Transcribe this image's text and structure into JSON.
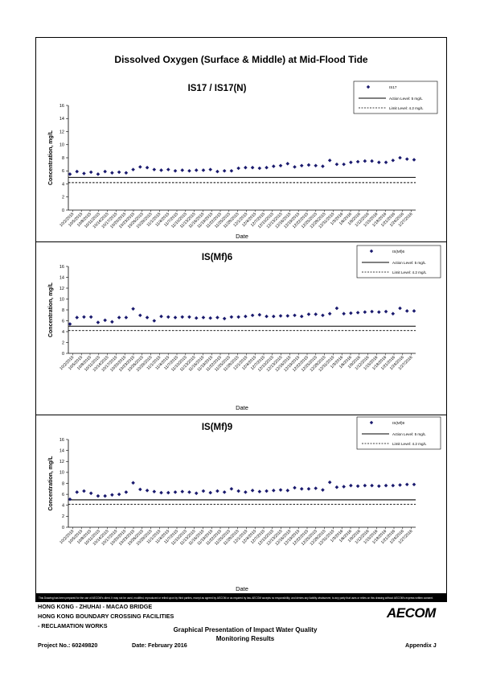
{
  "main_title": "Dissolved Oxygen (Surface & Middle) at Mid-Flood Tide",
  "disclaimer": "This Drawing has been prepared for the use of AECOM's client. It may not be used, modified, reproduced or relied upon by third parties, except as agreed by AECOM or as required by law. AECOM accepts no responsibility, and denies any liability whatsoever, to any party that uses or relies on this drawing without AECOM's express written consent.",
  "footer": {
    "line1": "HONG KONG - ZHUHAI - MACAO BRIDGE",
    "line2": "HONG KONG BOUNDARY CROSSING FACILITIES",
    "line3": "- RECLAMATION WORKS",
    "title_line1": "Graphical Presentation of Impact Water Quality",
    "title_line2": "Monitoring Results",
    "project": "Project No.: 60249820",
    "date": "Date: February 2016",
    "appendix": "Appendix J",
    "logo": "AECOM"
  },
  "colors": {
    "series": "#1a1a6e",
    "action": "#000000",
    "limit": "#000000"
  },
  "chart_data": [
    {
      "type": "scatter",
      "title": "IS17 / IS17(N)",
      "xlabel": "Date",
      "ylabel": "Concentration, mg/L",
      "ylim": [
        0,
        16
      ],
      "yticks": [
        0,
        2,
        4,
        6,
        8,
        10,
        12,
        14,
        16
      ],
      "x_tick_labels": [
        "10/2/2015",
        "10/5/2015",
        "10/8/2015",
        "10/11/2015",
        "10/14/2015",
        "10/17/2015",
        "10/20/2015",
        "10/23/2015",
        "10/26/2015",
        "10/29/2015",
        "11/1/2015",
        "11/4/2015",
        "11/7/2015",
        "11/10/2015",
        "11/13/2015",
        "11/16/2015",
        "11/19/2015",
        "11/22/2015",
        "11/25/2015",
        "11/28/2015",
        "12/1/2015",
        "12/4/2015",
        "12/7/2015",
        "12/10/2015",
        "12/13/2015",
        "12/16/2015",
        "12/19/2015",
        "12/22/2015",
        "12/25/2015",
        "12/28/2015",
        "12/31/2015",
        "1/3/2016",
        "1/6/2016",
        "1/9/2016",
        "1/12/2016",
        "1/15/2016",
        "1/18/2016",
        "1/21/2016",
        "1/24/2016",
        "1/27/2016"
      ],
      "legend": {
        "series": "IS17",
        "action": "Action Level: 5 mg/L",
        "limit": "Limit Level: 4.2 mg/L",
        "position": "top-right"
      },
      "action_level": 5,
      "limit_level": 4.2,
      "series": [
        {
          "name": "IS17",
          "values": [
            5.5,
            5.9,
            5.6,
            5.8,
            5.5,
            5.9,
            5.7,
            5.8,
            5.7,
            6.2,
            6.6,
            6.5,
            6.2,
            6.1,
            6.2,
            6.0,
            6.1,
            6.0,
            6.1,
            6.1,
            6.2,
            5.9,
            6.0,
            6.0,
            6.4,
            6.5,
            6.5,
            6.4,
            6.5,
            6.7,
            6.8,
            7.1,
            6.6,
            6.8,
            6.9,
            6.8,
            6.7,
            7.6,
            7.0,
            7.0,
            7.3,
            7.4,
            7.5,
            7.5,
            7.3,
            7.3,
            7.6,
            8.0,
            7.8,
            7.7
          ]
        }
      ]
    },
    {
      "type": "scatter",
      "title": "IS(Mf)6",
      "xlabel": "Date",
      "ylabel": "Concentration, mg/L",
      "ylim": [
        0,
        16
      ],
      "yticks": [
        0,
        2,
        4,
        6,
        8,
        10,
        12,
        14,
        16
      ],
      "x_tick_labels": [
        "10/2/2015",
        "10/5/2015",
        "10/8/2015",
        "10/11/2015",
        "10/14/2015",
        "10/17/2015",
        "10/20/2015",
        "10/23/2015",
        "10/26/2015",
        "10/29/2015",
        "11/1/2015",
        "11/4/2015",
        "11/7/2015",
        "11/10/2015",
        "11/13/2015",
        "11/16/2015",
        "11/19/2015",
        "11/22/2015",
        "11/25/2015",
        "11/28/2015",
        "12/1/2015",
        "12/4/2015",
        "12/7/2015",
        "12/10/2015",
        "12/13/2015",
        "12/16/2015",
        "12/19/2015",
        "12/22/2015",
        "12/25/2015",
        "12/28/2015",
        "12/31/2015",
        "1/3/2016",
        "1/6/2016",
        "1/9/2016",
        "1/12/2016",
        "1/15/2016",
        "1/18/2016",
        "1/21/2016",
        "1/24/2016",
        "1/27/2016"
      ],
      "legend": {
        "series": "IS(Mf)6",
        "action": "Action Level: 5 mg/L",
        "limit": "Limit Level: 4.2 mg/L",
        "position": "top-right"
      },
      "action_level": 5,
      "limit_level": 4.2,
      "series": [
        {
          "name": "IS(Mf)6",
          "values": [
            5.4,
            6.6,
            6.7,
            6.7,
            5.7,
            6.1,
            5.8,
            6.6,
            6.6,
            8.2,
            7.0,
            6.6,
            6.0,
            6.8,
            6.7,
            6.6,
            6.7,
            6.7,
            6.5,
            6.6,
            6.5,
            6.6,
            6.4,
            6.7,
            6.7,
            6.8,
            7.0,
            7.1,
            6.8,
            6.8,
            6.9,
            6.9,
            7.0,
            6.8,
            7.2,
            7.2,
            7.0,
            7.3,
            8.3,
            7.3,
            7.4,
            7.5,
            7.6,
            7.7,
            7.6,
            7.7,
            7.3,
            8.3,
            7.8,
            7.8
          ]
        }
      ]
    },
    {
      "type": "scatter",
      "title": "IS(Mf)9",
      "xlabel": "Date",
      "ylabel": "Concentration, mg/L",
      "ylim": [
        0,
        16
      ],
      "yticks": [
        0,
        2,
        4,
        6,
        8,
        10,
        12,
        14,
        16
      ],
      "x_tick_labels": [
        "10/2/2015",
        "10/5/2015",
        "10/8/2015",
        "10/11/2015",
        "10/14/2015",
        "10/17/2015",
        "10/20/2015",
        "10/23/2015",
        "10/26/2015",
        "10/29/2015",
        "11/1/2015",
        "11/4/2015",
        "11/7/2015",
        "11/10/2015",
        "11/13/2015",
        "11/16/2015",
        "11/19/2015",
        "11/22/2015",
        "11/25/2015",
        "11/28/2015",
        "12/1/2015",
        "12/4/2015",
        "12/7/2015",
        "12/10/2015",
        "12/13/2015",
        "12/16/2015",
        "12/19/2015",
        "12/22/2015",
        "12/25/2015",
        "12/28/2015",
        "12/31/2015",
        "1/3/2016",
        "1/6/2016",
        "1/9/2016",
        "1/12/2016",
        "1/15/2016",
        "1/18/2016",
        "1/21/2016",
        "1/24/2016",
        "1/27/2016"
      ],
      "legend": {
        "series": "IS(Mf)9",
        "action": "Action Level: 5 mg/L",
        "limit": "Limit Level: 4.2 mg/L",
        "position": "top-right"
      },
      "action_level": 5,
      "limit_level": 4.2,
      "series": [
        {
          "name": "IS(Mf)9",
          "values": [
            5.1,
            6.4,
            6.6,
            6.2,
            5.7,
            5.7,
            5.9,
            6.0,
            6.4,
            8.1,
            6.9,
            6.7,
            6.5,
            6.3,
            6.3,
            6.4,
            6.5,
            6.4,
            6.2,
            6.6,
            6.3,
            6.6,
            6.4,
            7.0,
            6.6,
            6.4,
            6.7,
            6.5,
            6.6,
            6.7,
            6.8,
            6.7,
            7.2,
            7.0,
            7.0,
            7.1,
            6.8,
            8.2,
            7.3,
            7.4,
            7.6,
            7.5,
            7.6,
            7.6,
            7.5,
            7.6,
            7.6,
            7.7,
            7.8,
            7.8
          ]
        }
      ]
    }
  ]
}
